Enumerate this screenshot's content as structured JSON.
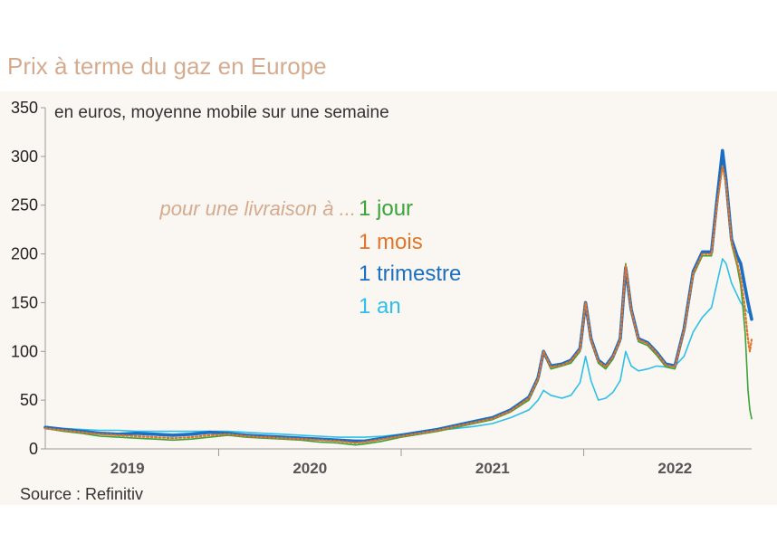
{
  "chart_data": {
    "type": "line",
    "title": "Prix à terme du gaz en Europe",
    "subtitle": "en euros, moyenne mobile sur une semaine",
    "source": "Source : Refinitiv",
    "legend_intro": "pour une livraison à ...",
    "ylim": [
      0,
      350
    ],
    "yticks": [
      "0",
      "50",
      "100",
      "150",
      "200",
      "250",
      "300",
      "350"
    ],
    "xlim": [
      2018.55,
      2022.42
    ],
    "xticks": [
      {
        "label": "2019",
        "x": 2019.0
      },
      {
        "label": "2020",
        "x": 2020.0
      },
      {
        "label": "2021",
        "x": 2021.0
      },
      {
        "label": "2022",
        "x": 2022.0
      }
    ],
    "grid": false,
    "background_color": "#faf6f2",
    "series": [
      {
        "name": "1 jour",
        "color": "#3aa339",
        "style": "solid",
        "width": 1.6,
        "points": [
          [
            2018.55,
            21
          ],
          [
            2018.65,
            18
          ],
          [
            2018.75,
            16
          ],
          [
            2018.85,
            13
          ],
          [
            2018.95,
            12
          ],
          [
            2019.05,
            11
          ],
          [
            2019.15,
            10
          ],
          [
            2019.25,
            9
          ],
          [
            2019.35,
            10
          ],
          [
            2019.45,
            12
          ],
          [
            2019.55,
            14
          ],
          [
            2019.65,
            12
          ],
          [
            2019.75,
            11
          ],
          [
            2019.85,
            10
          ],
          [
            2019.95,
            9
          ],
          [
            2020.05,
            7
          ],
          [
            2020.15,
            6
          ],
          [
            2020.25,
            4
          ],
          [
            2020.3,
            5
          ],
          [
            2020.4,
            8
          ],
          [
            2020.5,
            12
          ],
          [
            2020.6,
            15
          ],
          [
            2020.7,
            18
          ],
          [
            2020.8,
            22
          ],
          [
            2020.9,
            26
          ],
          [
            2021.0,
            30
          ],
          [
            2021.1,
            38
          ],
          [
            2021.2,
            50
          ],
          [
            2021.25,
            70
          ],
          [
            2021.28,
            98
          ],
          [
            2021.32,
            82
          ],
          [
            2021.38,
            85
          ],
          [
            2021.43,
            88
          ],
          [
            2021.48,
            100
          ],
          [
            2021.51,
            148
          ],
          [
            2021.54,
            110
          ],
          [
            2021.58,
            88
          ],
          [
            2021.62,
            82
          ],
          [
            2021.66,
            92
          ],
          [
            2021.7,
            110
          ],
          [
            2021.73,
            190
          ],
          [
            2021.76,
            140
          ],
          [
            2021.8,
            110
          ],
          [
            2021.85,
            106
          ],
          [
            2021.9,
            96
          ],
          [
            2021.95,
            84
          ],
          [
            2022.0,
            82
          ],
          [
            2022.05,
            120
          ],
          [
            2022.1,
            178
          ],
          [
            2022.15,
            198
          ],
          [
            2022.2,
            198
          ],
          [
            2022.23,
            248
          ],
          [
            2022.26,
            292
          ],
          [
            2022.28,
            270
          ],
          [
            2022.31,
            210
          ],
          [
            2022.34,
            188
          ],
          [
            2022.36,
            168
          ],
          [
            2022.37,
            150
          ],
          [
            2022.385,
            118
          ],
          [
            2022.4,
            60
          ],
          [
            2022.41,
            40
          ],
          [
            2022.42,
            31
          ]
        ]
      },
      {
        "name": "1 mois",
        "color": "#e0752a",
        "style": "dotted",
        "width": 2.2,
        "points": [
          [
            2018.55,
            21
          ],
          [
            2018.65,
            19
          ],
          [
            2018.75,
            17
          ],
          [
            2018.85,
            15
          ],
          [
            2018.95,
            14
          ],
          [
            2019.05,
            13
          ],
          [
            2019.15,
            12
          ],
          [
            2019.25,
            11
          ],
          [
            2019.35,
            12
          ],
          [
            2019.45,
            14
          ],
          [
            2019.55,
            15
          ],
          [
            2019.65,
            13
          ],
          [
            2019.75,
            12
          ],
          [
            2019.85,
            11
          ],
          [
            2019.95,
            10
          ],
          [
            2020.05,
            9
          ],
          [
            2020.15,
            8
          ],
          [
            2020.25,
            6
          ],
          [
            2020.3,
            7
          ],
          [
            2020.4,
            10
          ],
          [
            2020.5,
            13
          ],
          [
            2020.6,
            16
          ],
          [
            2020.7,
            19
          ],
          [
            2020.8,
            23
          ],
          [
            2020.9,
            27
          ],
          [
            2021.0,
            31
          ],
          [
            2021.1,
            39
          ],
          [
            2021.2,
            52
          ],
          [
            2021.25,
            72
          ],
          [
            2021.28,
            100
          ],
          [
            2021.32,
            84
          ],
          [
            2021.38,
            86
          ],
          [
            2021.43,
            90
          ],
          [
            2021.48,
            102
          ],
          [
            2021.51,
            150
          ],
          [
            2021.54,
            112
          ],
          [
            2021.58,
            90
          ],
          [
            2021.62,
            84
          ],
          [
            2021.66,
            94
          ],
          [
            2021.7,
            112
          ],
          [
            2021.73,
            188
          ],
          [
            2021.76,
            142
          ],
          [
            2021.8,
            112
          ],
          [
            2021.85,
            108
          ],
          [
            2021.9,
            98
          ],
          [
            2021.95,
            86
          ],
          [
            2022.0,
            84
          ],
          [
            2022.05,
            122
          ],
          [
            2022.1,
            180
          ],
          [
            2022.15,
            200
          ],
          [
            2022.2,
            200
          ],
          [
            2022.23,
            250
          ],
          [
            2022.26,
            290
          ],
          [
            2022.28,
            272
          ],
          [
            2022.31,
            212
          ],
          [
            2022.34,
            192
          ],
          [
            2022.36,
            175
          ],
          [
            2022.38,
            150
          ],
          [
            2022.39,
            130
          ],
          [
            2022.4,
            112
          ],
          [
            2022.41,
            100
          ],
          [
            2022.42,
            112
          ]
        ]
      },
      {
        "name": "1 trimestre",
        "color": "#1b6fc2",
        "style": "solid",
        "width": 3.6,
        "points": [
          [
            2018.55,
            22
          ],
          [
            2018.65,
            20
          ],
          [
            2018.75,
            18
          ],
          [
            2018.85,
            16
          ],
          [
            2018.95,
            15
          ],
          [
            2019.05,
            16
          ],
          [
            2019.15,
            15
          ],
          [
            2019.25,
            14
          ],
          [
            2019.35,
            15
          ],
          [
            2019.45,
            17
          ],
          [
            2019.55,
            16
          ],
          [
            2019.65,
            14
          ],
          [
            2019.75,
            13
          ],
          [
            2019.85,
            12
          ],
          [
            2019.95,
            11
          ],
          [
            2020.05,
            10
          ],
          [
            2020.15,
            9
          ],
          [
            2020.25,
            8
          ],
          [
            2020.3,
            8
          ],
          [
            2020.4,
            11
          ],
          [
            2020.5,
            14
          ],
          [
            2020.6,
            17
          ],
          [
            2020.7,
            20
          ],
          [
            2020.8,
            24
          ],
          [
            2020.9,
            28
          ],
          [
            2021.0,
            32
          ],
          [
            2021.1,
            40
          ],
          [
            2021.2,
            53
          ],
          [
            2021.25,
            73
          ],
          [
            2021.28,
            100
          ],
          [
            2021.32,
            85
          ],
          [
            2021.38,
            87
          ],
          [
            2021.43,
            91
          ],
          [
            2021.48,
            103
          ],
          [
            2021.51,
            150
          ],
          [
            2021.54,
            113
          ],
          [
            2021.58,
            91
          ],
          [
            2021.62,
            85
          ],
          [
            2021.66,
            95
          ],
          [
            2021.7,
            113
          ],
          [
            2021.73,
            186
          ],
          [
            2021.76,
            143
          ],
          [
            2021.8,
            113
          ],
          [
            2021.85,
            109
          ],
          [
            2021.9,
            99
          ],
          [
            2021.95,
            87
          ],
          [
            2022.0,
            85
          ],
          [
            2022.05,
            123
          ],
          [
            2022.1,
            182
          ],
          [
            2022.15,
            202
          ],
          [
            2022.2,
            202
          ],
          [
            2022.23,
            255
          ],
          [
            2022.26,
            306
          ],
          [
            2022.28,
            275
          ],
          [
            2022.31,
            215
          ],
          [
            2022.34,
            198
          ],
          [
            2022.36,
            190
          ],
          [
            2022.38,
            170
          ],
          [
            2022.4,
            150
          ],
          [
            2022.42,
            133
          ]
        ]
      },
      {
        "name": "1 an",
        "color": "#2ec0e8",
        "style": "solid",
        "width": 1.6,
        "points": [
          [
            2018.55,
            23
          ],
          [
            2018.65,
            21
          ],
          [
            2018.75,
            20
          ],
          [
            2018.85,
            19
          ],
          [
            2018.95,
            19
          ],
          [
            2019.05,
            18
          ],
          [
            2019.15,
            18
          ],
          [
            2019.25,
            18
          ],
          [
            2019.35,
            18
          ],
          [
            2019.45,
            18
          ],
          [
            2019.55,
            18
          ],
          [
            2019.65,
            17
          ],
          [
            2019.75,
            16
          ],
          [
            2019.85,
            15
          ],
          [
            2019.95,
            14
          ],
          [
            2020.05,
            13
          ],
          [
            2020.15,
            12
          ],
          [
            2020.25,
            12
          ],
          [
            2020.3,
            12
          ],
          [
            2020.4,
            13
          ],
          [
            2020.5,
            15
          ],
          [
            2020.6,
            17
          ],
          [
            2020.7,
            19
          ],
          [
            2020.8,
            21
          ],
          [
            2020.9,
            23
          ],
          [
            2021.0,
            26
          ],
          [
            2021.1,
            32
          ],
          [
            2021.2,
            40
          ],
          [
            2021.25,
            50
          ],
          [
            2021.28,
            60
          ],
          [
            2021.32,
            55
          ],
          [
            2021.38,
            52
          ],
          [
            2021.43,
            55
          ],
          [
            2021.48,
            68
          ],
          [
            2021.51,
            95
          ],
          [
            2021.54,
            70
          ],
          [
            2021.58,
            50
          ],
          [
            2021.62,
            52
          ],
          [
            2021.66,
            58
          ],
          [
            2021.7,
            70
          ],
          [
            2021.73,
            100
          ],
          [
            2021.76,
            85
          ],
          [
            2021.8,
            80
          ],
          [
            2021.85,
            82
          ],
          [
            2021.9,
            85
          ],
          [
            2021.95,
            84
          ],
          [
            2022.0,
            85
          ],
          [
            2022.05,
            95
          ],
          [
            2022.1,
            120
          ],
          [
            2022.15,
            135
          ],
          [
            2022.2,
            145
          ],
          [
            2022.23,
            170
          ],
          [
            2022.26,
            195
          ],
          [
            2022.28,
            190
          ],
          [
            2022.31,
            170
          ],
          [
            2022.34,
            158
          ],
          [
            2022.36,
            150
          ],
          [
            2022.38,
            145
          ],
          [
            2022.4,
            140
          ],
          [
            2022.42,
            138
          ]
        ]
      }
    ]
  }
}
